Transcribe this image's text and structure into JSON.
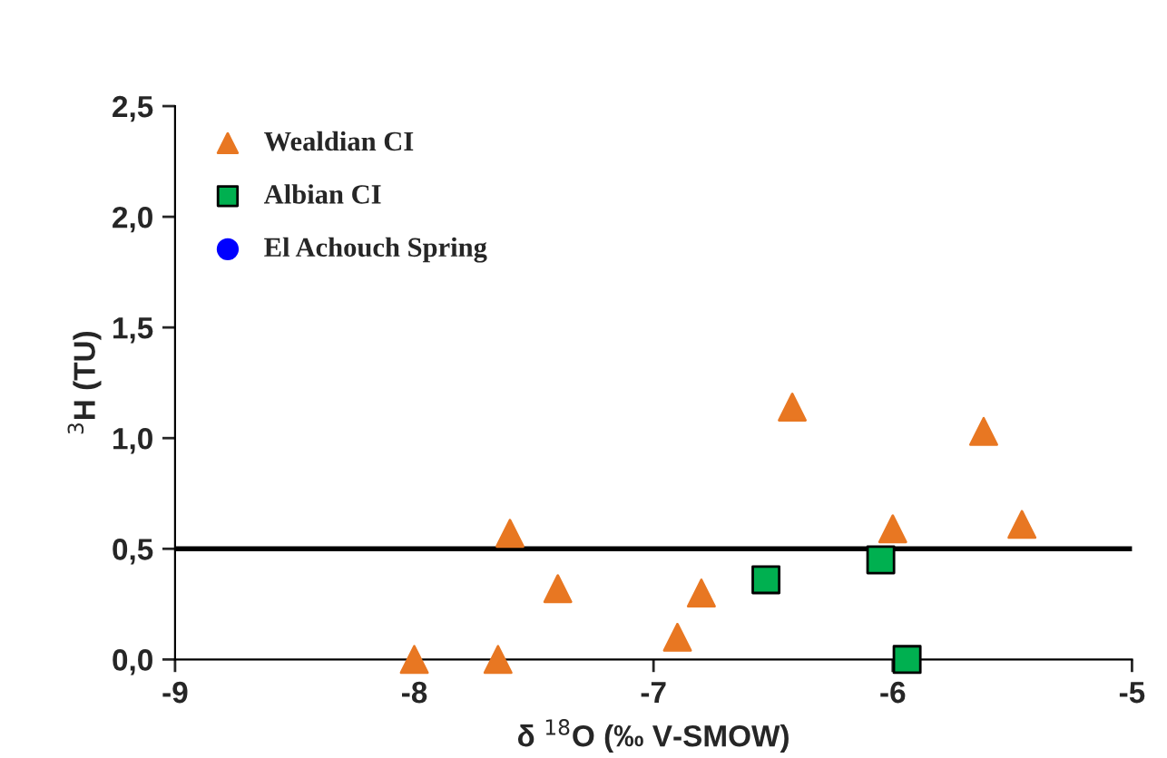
{
  "chart_data": {
    "type": "scatter",
    "xlabel": "δ $^{18}$O (‰ V-SMOW)",
    "ylabel": "$^{3}$H (TU)",
    "xlim": [
      -9,
      -5
    ],
    "ylim": [
      0,
      2.5
    ],
    "xticks": [
      {
        "value": -9,
        "label": "-9"
      },
      {
        "value": -8,
        "label": "-8"
      },
      {
        "value": -7,
        "label": "-7"
      },
      {
        "value": -6,
        "label": "-6"
      },
      {
        "value": -5,
        "label": "-5"
      }
    ],
    "yticks": [
      {
        "value": 0,
        "label": "0,0"
      },
      {
        "value": 0.5,
        "label": "0,5"
      },
      {
        "value": 1,
        "label": "1,0"
      },
      {
        "value": 1.5,
        "label": "1,5"
      },
      {
        "value": 2,
        "label": "2,0"
      },
      {
        "value": 2.5,
        "label": "2,5"
      }
    ],
    "series": [
      {
        "name": "Wealdian CI",
        "color": "#e87722",
        "marker": "triangle",
        "x": [
          -8.0,
          -7.65,
          -7.6,
          -7.4,
          -6.9,
          -6.8,
          -6.42,
          -6.0,
          -5.62,
          -5.46
        ],
        "values": [
          0.0,
          0.0,
          0.57,
          0.32,
          0.1,
          0.3,
          1.14,
          0.59,
          1.03,
          0.61
        ]
      },
      {
        "name": "Albian CI",
        "color": "#00b050",
        "marker": "square",
        "x": [
          -6.53,
          -6.05,
          -5.94
        ],
        "values": [
          0.36,
          0.45,
          0.0
        ]
      },
      {
        "name": "El Achouch Spring",
        "color": "#0000ff",
        "marker": "circle"
      }
    ],
    "ref_lines": [
      {
        "axis": "y",
        "value": 0.5,
        "color": "#000000"
      }
    ],
    "grid": false,
    "legend": "top left"
  }
}
